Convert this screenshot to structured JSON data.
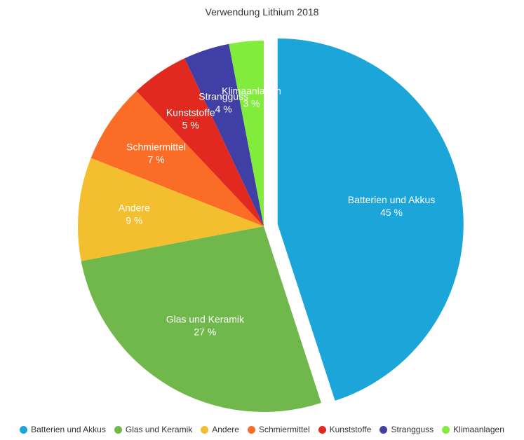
{
  "chart_data": {
    "type": "pie",
    "title": "Verwendung Lithium 2018",
    "categories": [
      "Batterien und Akkus",
      "Glas und Keramik",
      "Andere",
      "Schmiermittel",
      "Kunststoffe",
      "Strangguss",
      "Klimaanlagen"
    ],
    "values": [
      45,
      27,
      9,
      7,
      5,
      4,
      3
    ],
    "labels": [
      "45 %",
      "27 %",
      "9 %",
      "7 %",
      "5 %",
      "4 %",
      "3 %"
    ],
    "colors": [
      "#1ca5d8",
      "#70b84c",
      "#f3bf2f",
      "#fb6d27",
      "#e2291f",
      "#3f3fa5",
      "#82ec3c"
    ],
    "exploded": "Batterien und Akkus",
    "legend_position": "bottom"
  }
}
